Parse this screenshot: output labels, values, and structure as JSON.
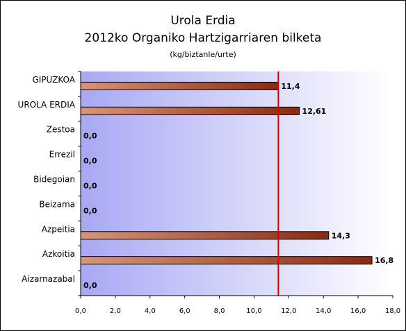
{
  "chart_data": {
    "type": "bar",
    "orientation": "horizontal",
    "title": "Urola Erdia",
    "subtitle": "2012ko Organiko Hartzigarriaren bilketa",
    "unit_label": "(kg/biztanle/urte)",
    "categories": [
      "GIPUZKOA",
      "UROLA ERDIA",
      "Zestoa",
      "Errezil",
      "Bidegoian",
      "Beizama",
      "Azpeitia",
      "Azkoitia",
      "Aizarnazabal"
    ],
    "values": [
      11.4,
      12.61,
      0.0,
      0.0,
      0.0,
      0.0,
      14.3,
      16.8,
      0.0
    ],
    "value_labels": [
      "11,4",
      "12,61",
      "0,0",
      "0,0",
      "0,0",
      "0,0",
      "14,3",
      "16,8",
      "0,0"
    ],
    "xlim": [
      0,
      18
    ],
    "x_ticks": [
      "0,0",
      "2,0",
      "4,0",
      "6,0",
      "8,0",
      "10,0",
      "12,0",
      "14,0",
      "16,0",
      "18,0"
    ],
    "reference_line": 11.4,
    "grid": false,
    "legend": "none",
    "colors": {
      "bar_light": "#d9957a",
      "bar_dark": "#8a2a10",
      "reference_line": "#dd0000",
      "plot_bg_left": "#a8a8f4",
      "plot_bg_right": "#ffffff"
    }
  }
}
